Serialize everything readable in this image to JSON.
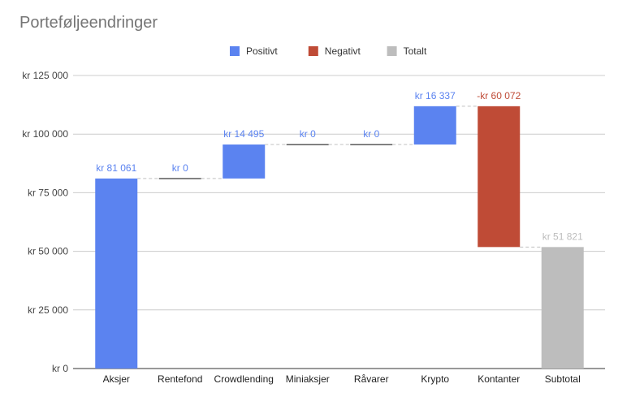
{
  "chart_data": {
    "type": "waterfall",
    "title": "Porteføljeendringer",
    "legend": {
      "placement": "top-center",
      "items": [
        {
          "label": "Positivt",
          "color": "#5b83f0"
        },
        {
          "label": "Negativt",
          "color": "#bf4b36"
        },
        {
          "label": "Totalt",
          "color": "#bdbdbd"
        }
      ]
    },
    "categories": [
      "Aksjer",
      "Rentefond",
      "Crowdlending",
      "Miniaksjer",
      "Råvarer",
      "Krypto",
      "Kontanter",
      "Subtotal"
    ],
    "values": [
      81061,
      0,
      14495,
      0,
      0,
      16337,
      -60072,
      51821
    ],
    "kinds": [
      "positive",
      "positive",
      "positive",
      "positive",
      "positive",
      "positive",
      "negative",
      "total"
    ],
    "data_labels": [
      "kr  81 061",
      "kr  0",
      "kr  14 495",
      "kr  0",
      "kr  0",
      "kr  16 337",
      "-kr  60 072",
      "kr  51 821"
    ],
    "ylim": [
      0,
      125000
    ],
    "yticks": [
      {
        "value": 0,
        "label": "kr   0"
      },
      {
        "value": 25000,
        "label": "kr  25 000"
      },
      {
        "value": 50000,
        "label": "kr  50 000"
      },
      {
        "value": 75000,
        "label": "kr  75 000"
      },
      {
        "value": 100000,
        "label": "kr  100 000"
      },
      {
        "value": 125000,
        "label": "kr  125 000"
      }
    ],
    "grid": true,
    "connectors": true,
    "colors": {
      "positive": "#5b83f0",
      "negative": "#bf4b36",
      "total": "#bdbdbd",
      "axis_text": "#444444",
      "grid": "#cccccc",
      "connector": "#c0c0c0",
      "zero_bar": "#2f2f2f"
    }
  }
}
